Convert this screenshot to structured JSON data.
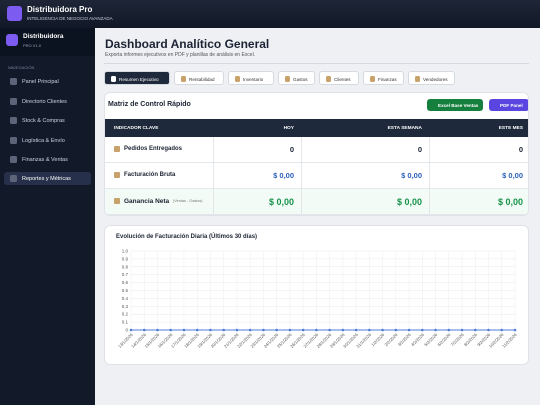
{
  "header": {
    "title": "Distribuidora Pro",
    "subtitle": "INTELIGENCIA DE NEGOCIO AVANZADA"
  },
  "sidebar": {
    "brand": "Distribuidora",
    "version": "PRO V1.0",
    "section": "NAVEGACIÓN",
    "items": [
      "Panel Principal",
      "Directorio Clientes",
      "Stock & Compras",
      "Logística & Envío",
      "Finanzas & Ventas",
      "Reportes y Métricas"
    ]
  },
  "page": {
    "title": "Dashboard Analítico General",
    "subtitle": "Exporta informes ejecutivos en PDF y planillas de análisis en Excel."
  },
  "tabs": [
    "Resumen Ejecutivo",
    "Rentabilidad",
    "Inventario",
    "Gastos",
    "Clientes",
    "Finanzas",
    "Vendedores"
  ],
  "matrix": {
    "title": "Matriz de Control Rápido",
    "buttons": [
      "Excel Base Ventas",
      "PDF Panel"
    ],
    "columns": [
      "INDICADOR CLAVE",
      "HOY",
      "ESTA SEMANA",
      "ESTE MES"
    ],
    "rows": [
      {
        "label": "Pedidos Entregados",
        "values": [
          0,
          0,
          0
        ]
      },
      {
        "label": "Facturación Bruta",
        "values": [
          "$ 0,00",
          "$ 0,00",
          "$ 0,00"
        ]
      },
      {
        "label": "Ganancia Neta",
        "note": "(Ventas - Gastos)",
        "values": [
          "$ 0,00",
          "$ 0,00",
          "$ 0,00"
        ]
      }
    ]
  },
  "chart_data": {
    "type": "line",
    "title": "Evolución de Facturación Diaria (Últimos 30 días)",
    "categories": [
      "13/1/2026",
      "14/1/2026",
      "15/1/2026",
      "16/1/2026",
      "17/1/2026",
      "18/1/2026",
      "19/1/2026",
      "20/1/2026",
      "21/1/2026",
      "22/1/2026",
      "23/1/2026",
      "24/1/2026",
      "25/1/2026",
      "26/1/2026",
      "27/1/2026",
      "28/1/2026",
      "29/1/2026",
      "30/1/2026",
      "31/1/2026",
      "1/2/2026",
      "2/2/2026",
      "3/2/2026",
      "4/2/2026",
      "5/2/2026",
      "6/2/2026",
      "7/2/2026",
      "8/2/2026",
      "9/2/2026",
      "10/2/2026",
      "11/2/2026"
    ],
    "series": [
      {
        "color": "#4f7bd8",
        "values": [
          0,
          0,
          0,
          0,
          0,
          0,
          0,
          0,
          0,
          0,
          0,
          0,
          0,
          0,
          0,
          0,
          0,
          0,
          0,
          0,
          0,
          0,
          0,
          0,
          0,
          0,
          0,
          0,
          0,
          0
        ]
      }
    ],
    "ylim": [
      0,
      1
    ],
    "yticks": [
      0,
      0.1,
      0.2,
      0.3,
      0.4,
      0.5,
      0.6,
      0.7,
      0.8,
      0.9,
      {
        "value": 1,
        "label": "1.0"
      }
    ],
    "grid": true
  }
}
